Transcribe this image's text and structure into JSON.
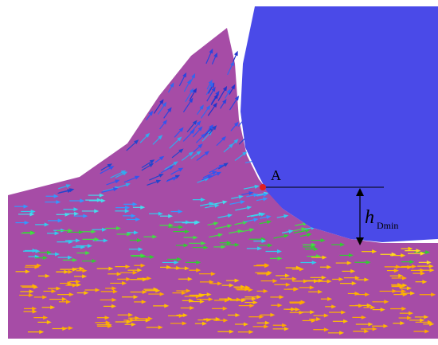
{
  "labels": {
    "point": "A",
    "symbol": "h",
    "subscript": "Dmin"
  }
}
